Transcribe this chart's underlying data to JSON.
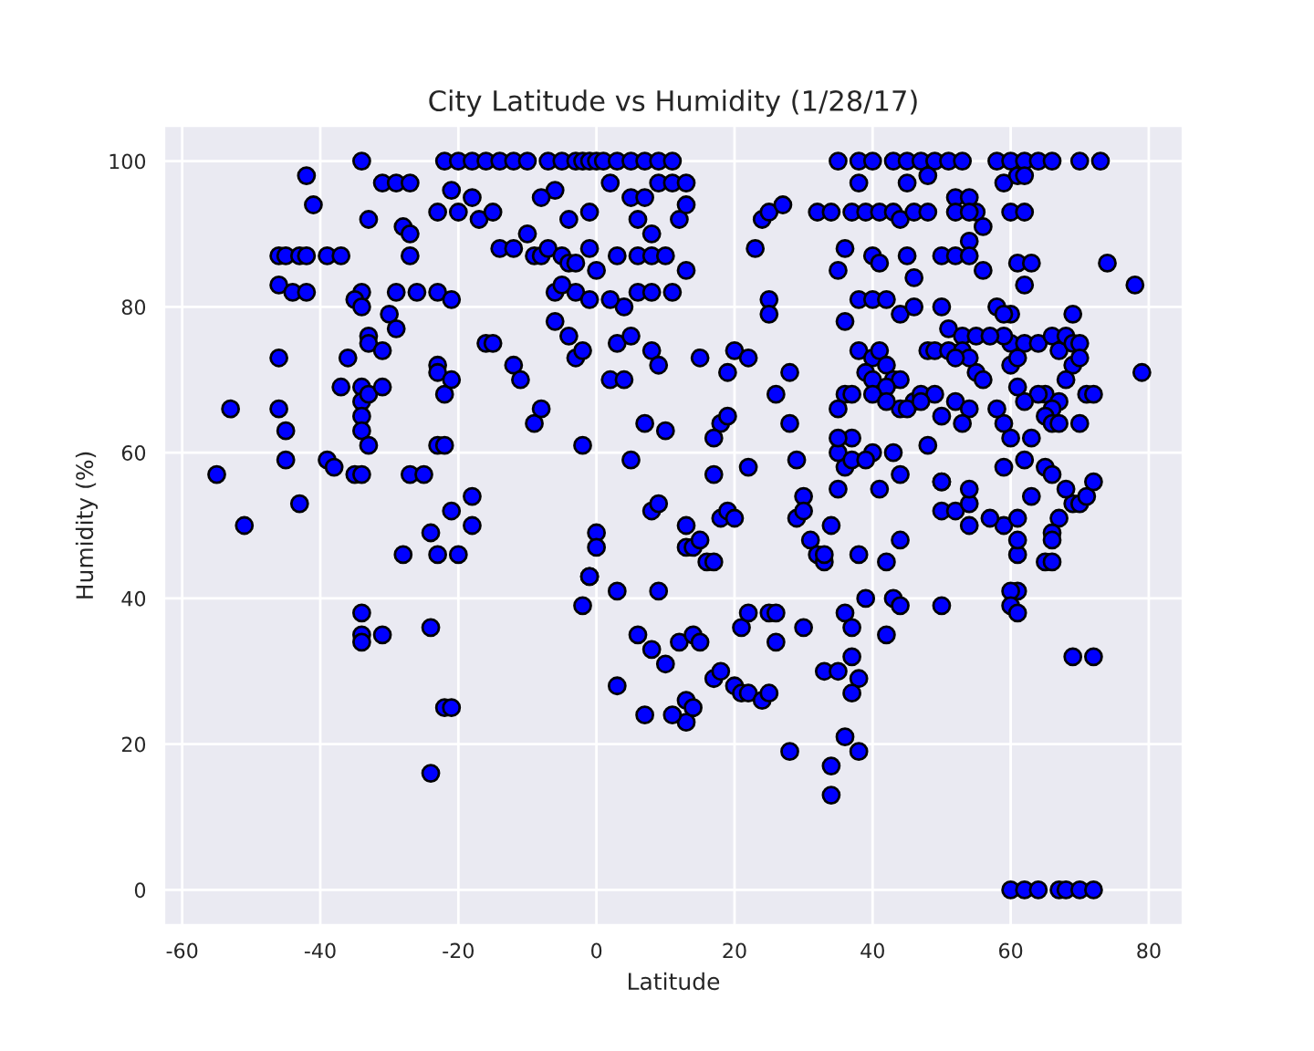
{
  "chart_data": {
    "type": "scatter",
    "title": "City Latitude vs Humidity (1/28/17)",
    "xlabel": "Latitude",
    "ylabel": "Humidity (%)",
    "xlim": [
      -62.6,
      84.9
    ],
    "ylim": [
      -4.8,
      104.8
    ],
    "xticks": [
      -60,
      -40,
      -20,
      0,
      20,
      40,
      60,
      80
    ],
    "yticks": [
      0,
      20,
      40,
      60,
      80,
      100
    ],
    "grid": true,
    "marker": "circle",
    "series": [
      {
        "color": "#0000ff",
        "x": [
          -55,
          -53,
          -51,
          -46,
          -45,
          -43,
          -42,
          -46,
          -44,
          -42,
          -42,
          -41,
          -46,
          -46,
          -45,
          -45,
          -43,
          -39,
          -37,
          -39,
          -38,
          -36,
          -37,
          -35,
          -34,
          -34,
          -35,
          -34,
          -34,
          -33,
          -33,
          -33,
          -34,
          -34,
          -33,
          -34,
          -34,
          -33,
          -31,
          -31,
          -30,
          -29,
          -29,
          -31,
          -29,
          -27,
          -28,
          -27,
          -27,
          -26,
          -28,
          -27,
          -25,
          -24,
          -23,
          -23,
          -22,
          -23,
          -23,
          -22,
          -23,
          -21,
          -21,
          -21,
          -20,
          -18,
          -18,
          -16,
          -15,
          -12,
          -11,
          -9,
          -8,
          -34,
          -34,
          -34,
          -31,
          -24,
          -22,
          -21,
          -24,
          -23,
          -22,
          -21,
          -20,
          -18,
          -16,
          -14,
          -12,
          -10,
          -20,
          -18,
          -17,
          -15,
          -14,
          -12,
          -10,
          -9,
          -8,
          -7,
          -6,
          -5,
          -4,
          -3,
          -3,
          -4,
          -3,
          -2,
          -2,
          -1,
          -1,
          -5,
          -6,
          -7,
          -6,
          -5,
          -3,
          -2,
          -1,
          0,
          -1,
          -4,
          -8,
          0,
          0,
          -1,
          -1,
          -2,
          1,
          3,
          5,
          7,
          9,
          11,
          2,
          5,
          7,
          9,
          11,
          13,
          6,
          8,
          12,
          13,
          3,
          6,
          8,
          10,
          13,
          0,
          4,
          6,
          8,
          11,
          2,
          3,
          5,
          8,
          9,
          15,
          2,
          4,
          7,
          10,
          5,
          8,
          9,
          13,
          13,
          9,
          3,
          6,
          8,
          10,
          12,
          13,
          13,
          14,
          7,
          11,
          3,
          14,
          15,
          14,
          15,
          16,
          17,
          18,
          17,
          19,
          19,
          18,
          19,
          17,
          18,
          17,
          20,
          21,
          22,
          22,
          20,
          21,
          22,
          20,
          22,
          24,
          23,
          25,
          27,
          25,
          25,
          26,
          28,
          28,
          29,
          29,
          30,
          30,
          31,
          32,
          33,
          33,
          34,
          33,
          37,
          38,
          37,
          36,
          38,
          34,
          34,
          28,
          30,
          25,
          26,
          26,
          24,
          25,
          35,
          36,
          37,
          39,
          38,
          35,
          36,
          35,
          37,
          40,
          43,
          41,
          44,
          44,
          42,
          43,
          44,
          42,
          50,
          50,
          52,
          54,
          54,
          59,
          61,
          61,
          50,
          57,
          58,
          60,
          62,
          64,
          66,
          70,
          73,
          59,
          61,
          62,
          60,
          62,
          61,
          63,
          74,
          78,
          58,
          60,
          59,
          62,
          60,
          62,
          64,
          66,
          67,
          69,
          68,
          69,
          70,
          69,
          68,
          70,
          71,
          72,
          65,
          67,
          66,
          64,
          62,
          61,
          60,
          59,
          65,
          66,
          67,
          63,
          65,
          66,
          69,
          70,
          71,
          72,
          70,
          65,
          68,
          67,
          66,
          66,
          66,
          63,
          59,
          60,
          61,
          59,
          61,
          61,
          69,
          72,
          60,
          62,
          64,
          67,
          68,
          70,
          72,
          79,
          62,
          60,
          60,
          58,
          61,
          35,
          38,
          40,
          43,
          45,
          47,
          49,
          51,
          53,
          38,
          45,
          48,
          52,
          54,
          55,
          56,
          32,
          34,
          37,
          39,
          41,
          43,
          44,
          46,
          48,
          52,
          54,
          54,
          36,
          40,
          41,
          45,
          50,
          52,
          54,
          56,
          46,
          35,
          38,
          40,
          42,
          44,
          46,
          50,
          51,
          53,
          55,
          57,
          36,
          38,
          40,
          41,
          42,
          43,
          44,
          48,
          49,
          51,
          53,
          55,
          54,
          52,
          36,
          37,
          39,
          40,
          42,
          44,
          46,
          47,
          49,
          50,
          52,
          54,
          56,
          35,
          35,
          37,
          39,
          40,
          45,
          47,
          53,
          48,
          50,
          54,
          42
        ],
        "values": [
          57,
          66,
          50,
          87,
          87,
          87,
          87,
          83,
          82,
          82,
          98,
          94,
          73,
          66,
          63,
          59,
          53,
          87,
          87,
          59,
          58,
          73,
          69,
          57,
          57,
          82,
          81,
          80,
          100,
          92,
          76,
          75,
          69,
          67,
          68,
          65,
          63,
          61,
          69,
          74,
          79,
          77,
          82,
          97,
          97,
          97,
          91,
          90,
          87,
          82,
          46,
          57,
          57,
          49,
          46,
          61,
          61,
          72,
          71,
          68,
          82,
          81,
          70,
          52,
          46,
          54,
          50,
          75,
          75,
          72,
          70,
          64,
          66,
          38,
          35,
          34,
          35,
          36,
          25,
          25,
          16,
          93,
          100,
          96,
          100,
          100,
          100,
          100,
          100,
          100,
          93,
          95,
          92,
          93,
          88,
          88,
          90,
          87,
          87,
          88,
          82,
          87,
          86,
          86,
          82,
          76,
          73,
          74,
          61,
          81,
          88,
          83,
          78,
          100,
          96,
          100,
          100,
          100,
          100,
          100,
          93,
          92,
          95,
          49,
          47,
          43,
          43,
          39,
          100,
          100,
          100,
          100,
          100,
          100,
          97,
          95,
          95,
          97,
          97,
          97,
          92,
          90,
          92,
          94,
          87,
          87,
          87,
          87,
          85,
          85,
          80,
          82,
          82,
          82,
          81,
          75,
          76,
          74,
          72,
          73,
          70,
          70,
          64,
          63,
          59,
          52,
          53,
          50,
          47,
          41,
          41,
          35,
          33,
          31,
          34,
          26,
          23,
          25,
          24,
          24,
          28,
          35,
          34,
          47,
          48,
          45,
          57,
          64,
          62,
          71,
          65,
          51,
          52,
          29,
          30,
          45,
          51,
          36,
          38,
          58,
          28,
          27,
          27,
          74,
          73,
          92,
          88,
          93,
          94,
          81,
          79,
          68,
          64,
          71,
          59,
          51,
          54,
          52,
          48,
          46,
          45,
          46,
          50,
          30,
          32,
          29,
          27,
          21,
          19,
          17,
          13,
          19,
          36,
          38,
          38,
          34,
          26,
          27,
          30,
          38,
          36,
          40,
          46,
          55,
          58,
          60,
          62,
          60,
          60,
          55,
          57,
          48,
          45,
          40,
          39,
          35,
          56,
          52,
          52,
          53,
          50,
          50,
          46,
          41,
          39,
          51,
          100,
          100,
          100,
          100,
          100,
          100,
          100,
          97,
          98,
          98,
          93,
          93,
          86,
          86,
          86,
          83,
          80,
          79,
          79,
          83,
          75,
          75,
          75,
          76,
          74,
          79,
          76,
          75,
          75,
          72,
          70,
          73,
          68,
          68,
          68,
          67,
          66,
          68,
          67,
          69,
          72,
          76,
          65,
          64,
          64,
          62,
          58,
          57,
          53,
          53,
          54,
          56,
          64,
          45,
          55,
          51,
          49,
          48,
          45,
          54,
          58,
          62,
          73,
          64,
          51,
          48,
          32,
          32,
          0,
          0,
          0,
          0,
          0,
          0,
          0,
          71,
          59,
          41,
          39,
          66,
          38,
          100,
          100,
          100,
          100,
          100,
          100,
          100,
          100,
          100,
          97,
          97,
          98,
          95,
          95,
          93,
          91,
          93,
          93,
          93,
          93,
          93,
          93,
          92,
          93,
          93,
          93,
          93,
          89,
          88,
          87,
          86,
          87,
          87,
          87,
          87,
          85,
          84,
          85,
          81,
          81,
          81,
          79,
          80,
          80,
          77,
          76,
          76,
          76,
          78,
          74,
          73,
          74,
          72,
          70,
          70,
          74,
          74,
          74,
          74,
          71,
          73,
          73,
          68,
          68,
          71,
          70,
          69,
          66,
          67,
          68,
          68,
          65,
          67,
          66,
          70,
          66,
          62,
          59,
          59,
          68,
          66,
          67,
          64,
          61,
          56,
          55,
          67
        ]
      }
    ]
  }
}
